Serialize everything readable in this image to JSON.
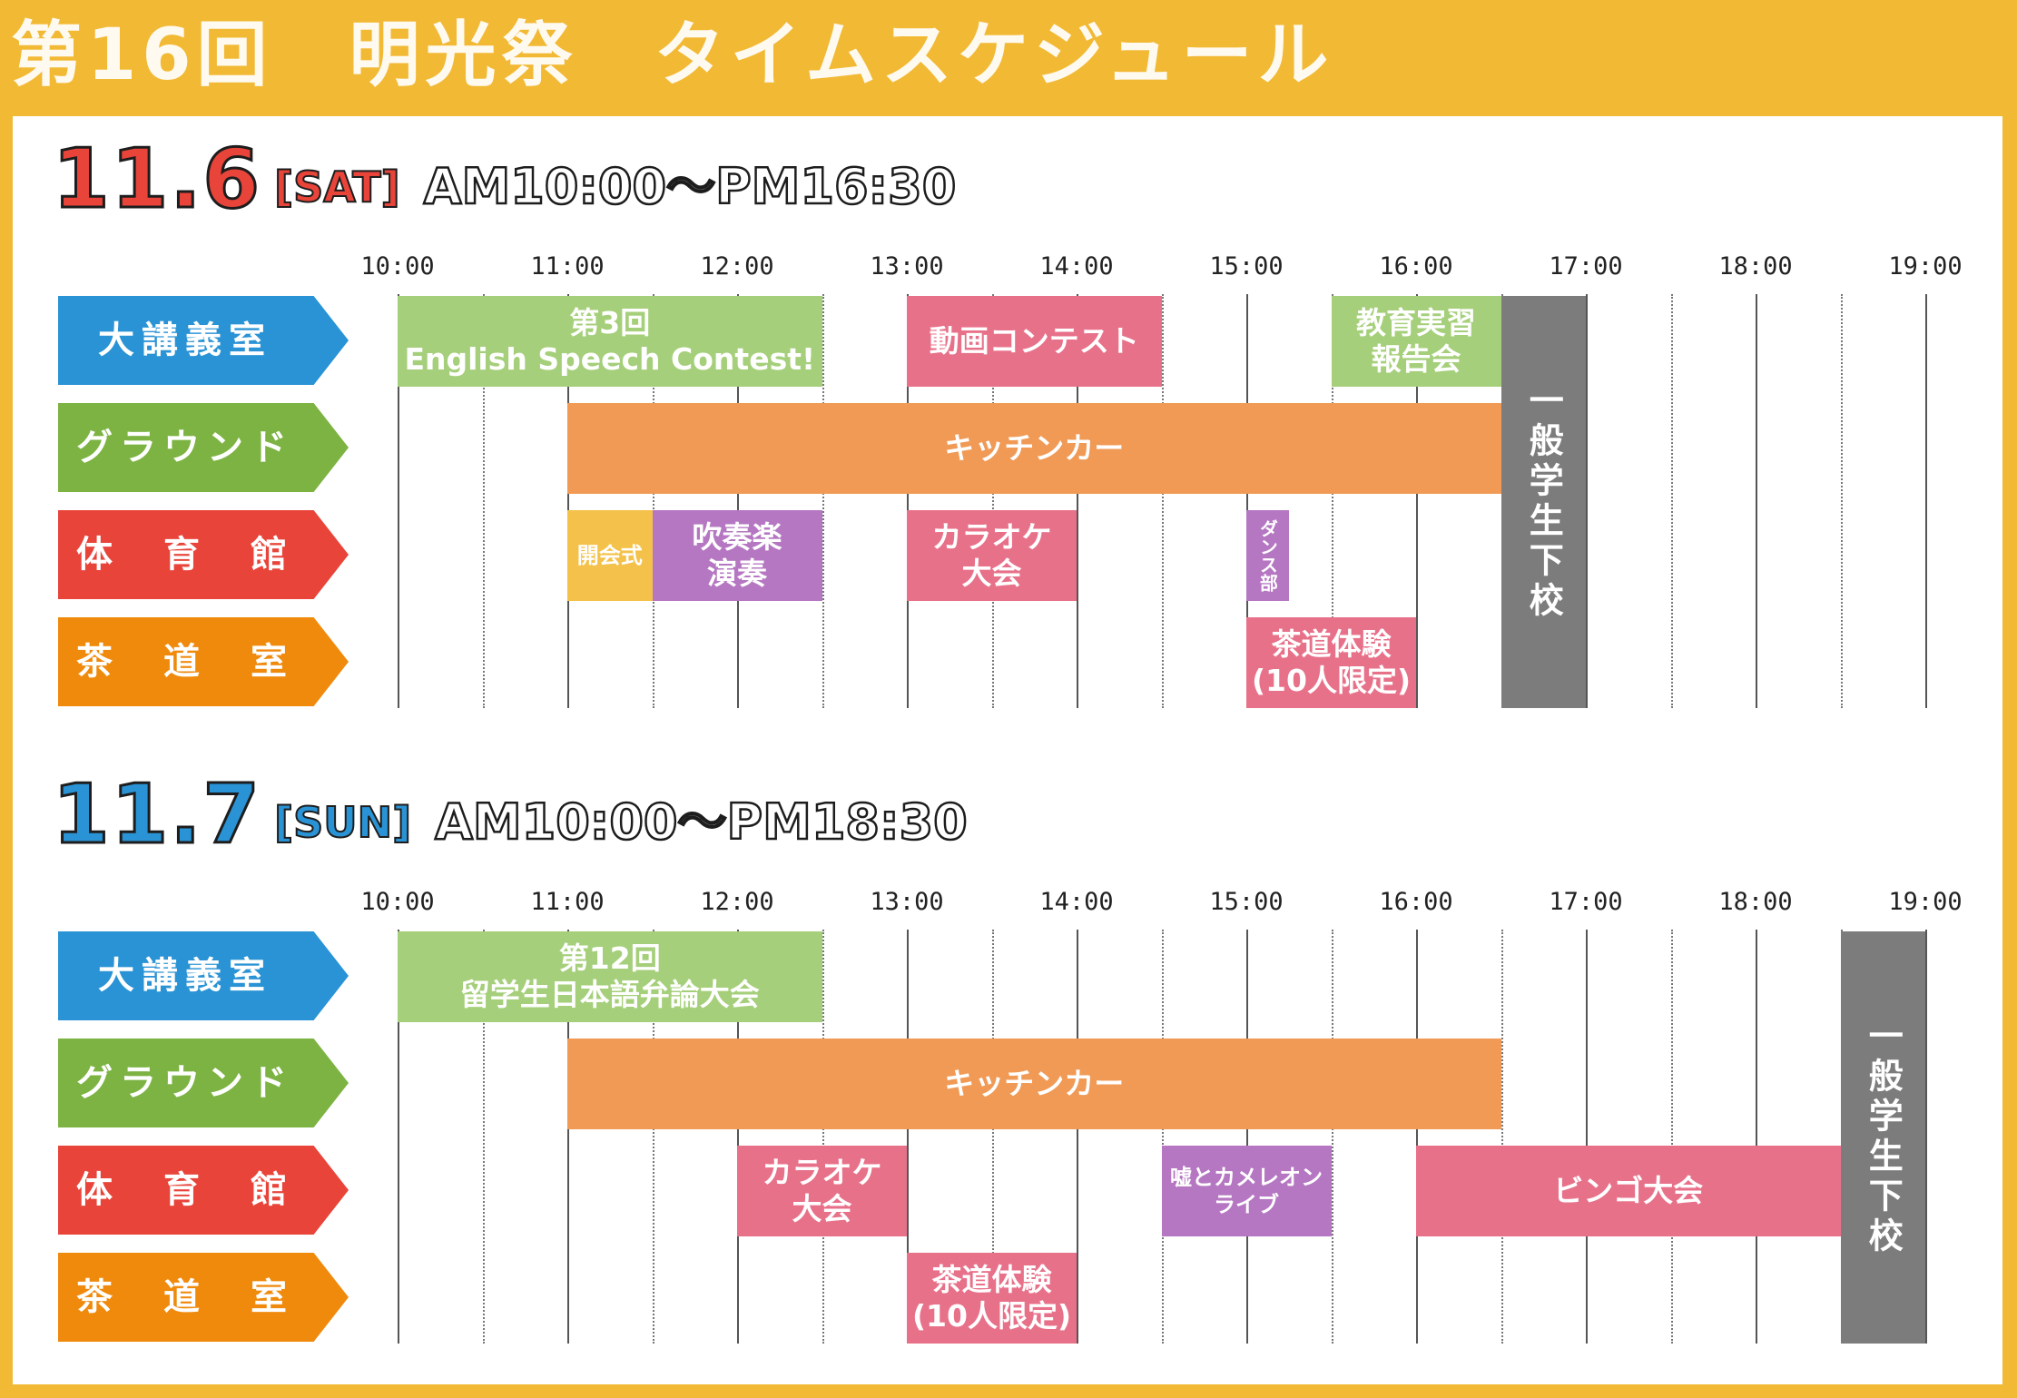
{
  "header": {
    "title": "第16回　明光祭　タイムスケジュール"
  },
  "colors": {
    "background": "#f2b934",
    "room_blue": "#2a93d5",
    "room_green": "#7cb342",
    "room_red": "#e8443a",
    "room_orange": "#ef8a0c",
    "event_green": "#a5cf7a",
    "event_pink": "#e8718a",
    "event_orange": "#f09a56",
    "event_yellow": "#f4c24a",
    "event_purple": "#b577c2",
    "event_gray": "#7c7c7c"
  },
  "rooms": [
    "大講義室",
    "グラウンド",
    "体　育　館",
    "茶　道　室"
  ],
  "time_labels": [
    "10:00",
    "11:00",
    "12:00",
    "13:00",
    "14:00",
    "15:00",
    "16:00",
    "17:00",
    "18:00",
    "19:00"
  ],
  "days": [
    {
      "date": "11.6",
      "dow": "[SAT]",
      "hours": "AM10:00～PM16:30",
      "date_color": "#e8443a",
      "events": [
        {
          "room": 0,
          "start": "10:00",
          "end": "12:30",
          "label": "第3回\nEnglish Speech Contest!",
          "color": "e-green"
        },
        {
          "room": 0,
          "start": "13:00",
          "end": "14:30",
          "label": "動画コンテスト",
          "color": "e-pink"
        },
        {
          "room": 0,
          "start": "15:30",
          "end": "16:30",
          "label": "教育実習\n報告会",
          "color": "e-green"
        },
        {
          "room": 1,
          "start": "11:00",
          "end": "16:30",
          "label": "キッチンカー",
          "color": "e-orange"
        },
        {
          "room": 2,
          "start": "11:00",
          "end": "11:30",
          "label": "開会式",
          "color": "e-yellow",
          "small": true
        },
        {
          "room": 2,
          "start": "11:30",
          "end": "12:30",
          "label": "吹奏楽\n演奏",
          "color": "e-purple"
        },
        {
          "room": 2,
          "start": "13:00",
          "end": "14:00",
          "label": "カラオケ\n大会",
          "color": "e-pink"
        },
        {
          "room": 2,
          "start": "15:00",
          "end": "15:15",
          "label": "ダンス部",
          "color": "e-purple",
          "vertical_small": true
        },
        {
          "room": 3,
          "start": "15:00",
          "end": "16:00",
          "label": "茶道体験\n(10人限定)",
          "color": "e-pink"
        },
        {
          "room": "all",
          "start": "16:30",
          "end": "17:00",
          "label": "一般学生下校",
          "color": "e-gray",
          "vertical": true
        }
      ]
    },
    {
      "date": "11.7",
      "dow": "[SUN]",
      "hours": "AM10:00～PM18:30",
      "date_color": "#2a93d5",
      "events": [
        {
          "room": 0,
          "start": "10:00",
          "end": "12:30",
          "label": "第12回\n留学生日本語弁論大会",
          "color": "e-green"
        },
        {
          "room": 1,
          "start": "11:00",
          "end": "16:30",
          "label": "キッチンカー",
          "color": "e-orange"
        },
        {
          "room": 2,
          "start": "12:00",
          "end": "13:00",
          "label": "カラオケ\n大会",
          "color": "e-pink"
        },
        {
          "room": 2,
          "start": "14:30",
          "end": "15:30",
          "label": "嘘とカメレオン\nライブ",
          "color": "e-purple",
          "small": true
        },
        {
          "room": 2,
          "start": "16:00",
          "end": "18:30",
          "label": "ビンゴ大会",
          "color": "e-pink"
        },
        {
          "room": 3,
          "start": "13:00",
          "end": "14:00",
          "label": "茶道体験\n(10人限定)",
          "color": "e-pink"
        },
        {
          "room": "all",
          "start": "18:30",
          "end": "19:00",
          "label": "一般学生下校",
          "color": "e-gray",
          "vertical": true
        }
      ]
    }
  ]
}
